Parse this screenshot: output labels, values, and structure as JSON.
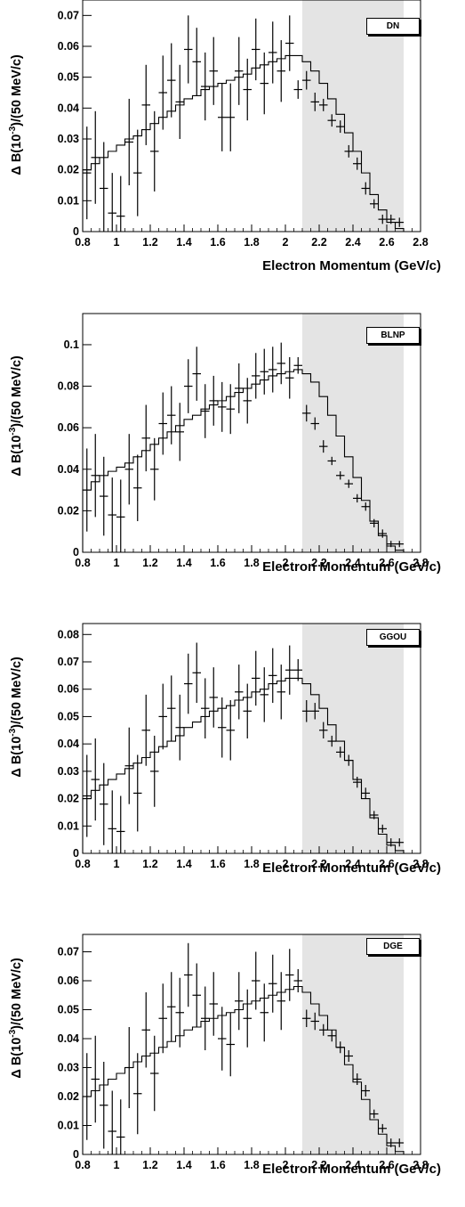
{
  "chart_data": [
    {
      "type": "histogram-with-errorbars",
      "label": "DN",
      "ylabel": "Δ B(10^-3)/(50 MeV/c)",
      "ylabel_parts": {
        "pre": "Δ B(10",
        "sup": "-3",
        "post": ")/(50 MeV/c)"
      },
      "xlabel": "Electron Momentum (GeV/c)",
      "xlim": [
        0.8,
        2.8
      ],
      "ylim": [
        0,
        0.075
      ],
      "xticks": [
        "0.8",
        "1",
        "1.2",
        "1.4",
        "1.6",
        "1.8",
        "2",
        "2.2",
        "2.4",
        "2.6",
        "2.8"
      ],
      "yticks": [
        "0",
        "0.01",
        "0.02",
        "0.03",
        "0.04",
        "0.05",
        "0.06",
        "0.07"
      ],
      "signal_region": [
        2.1,
        2.7
      ],
      "bin_edges": [
        0.8,
        0.85,
        0.9,
        0.95,
        1.0,
        1.05,
        1.1,
        1.15,
        1.2,
        1.25,
        1.3,
        1.35,
        1.4,
        1.45,
        1.5,
        1.55,
        1.6,
        1.65,
        1.7,
        1.75,
        1.8,
        1.85,
        1.9,
        1.95,
        2.0,
        2.05,
        2.1,
        2.15,
        2.2,
        2.25,
        2.3,
        2.35,
        2.4,
        2.45,
        2.5,
        2.55,
        2.6,
        2.65,
        2.7
      ],
      "model": [
        0.02,
        0.022,
        0.024,
        0.026,
        0.028,
        0.03,
        0.031,
        0.033,
        0.035,
        0.037,
        0.039,
        0.041,
        0.043,
        0.044,
        0.046,
        0.047,
        0.048,
        0.049,
        0.05,
        0.051,
        0.053,
        0.054,
        0.055,
        0.056,
        0.057,
        0.057,
        0.055,
        0.052,
        0.048,
        0.043,
        0.038,
        0.032,
        0.026,
        0.019,
        0.012,
        0.007,
        0.003,
        0.001
      ],
      "data": {
        "x": [
          0.825,
          0.875,
          0.925,
          0.975,
          1.025,
          1.075,
          1.125,
          1.175,
          1.225,
          1.275,
          1.325,
          1.375,
          1.425,
          1.475,
          1.525,
          1.575,
          1.625,
          1.675,
          1.725,
          1.775,
          1.825,
          1.875,
          1.925,
          1.975,
          2.025,
          2.075,
          2.125,
          2.175,
          2.225,
          2.275,
          2.325,
          2.375,
          2.425,
          2.475,
          2.525,
          2.575,
          2.625,
          2.675
        ],
        "y": [
          0.019,
          0.024,
          0.014,
          0.006,
          0.005,
          0.029,
          0.019,
          0.041,
          0.026,
          0.045,
          0.049,
          0.042,
          0.059,
          0.055,
          0.047,
          0.052,
          0.037,
          0.037,
          0.052,
          0.046,
          0.059,
          0.048,
          0.058,
          0.052,
          0.061,
          0.046,
          0.049,
          0.042,
          0.041,
          0.036,
          0.034,
          0.026,
          0.022,
          0.014,
          0.009,
          0.004,
          0.004,
          0.003
        ],
        "err": [
          0.015,
          0.015,
          0.015,
          0.013,
          0.013,
          0.014,
          0.014,
          0.013,
          0.013,
          0.012,
          0.012,
          0.012,
          0.011,
          0.011,
          0.011,
          0.011,
          0.011,
          0.011,
          0.011,
          0.01,
          0.01,
          0.01,
          0.01,
          0.01,
          0.009,
          0.003,
          0.003,
          0.003,
          0.002,
          0.002,
          0.002,
          0.002,
          0.002,
          0.002,
          0.0015,
          0.0015,
          0.0015,
          0.0015
        ]
      }
    },
    {
      "type": "histogram-with-errorbars",
      "label": "BLNP",
      "ylabel": "Δ B(10^-3)/(50 MeV/c)",
      "ylabel_parts": {
        "pre": "Δ B(10",
        "sup": "-3",
        "post": ")/(50 MeV/c)"
      },
      "xlabel": "Electron Momentum (GeV/c)",
      "xlim": [
        0.8,
        2.8
      ],
      "ylim": [
        0,
        0.115
      ],
      "xticks": [
        "0.8",
        "1",
        "1.2",
        "1.4",
        "1.6",
        "1.8",
        "2",
        "2.2",
        "2.4",
        "2.6",
        "2.8"
      ],
      "yticks": [
        "0",
        "0.02",
        "0.04",
        "0.06",
        "0.08",
        "0.1"
      ],
      "signal_region": [
        2.1,
        2.7
      ],
      "bin_edges": [
        0.8,
        0.85,
        0.9,
        0.95,
        1.0,
        1.05,
        1.1,
        1.15,
        1.2,
        1.25,
        1.3,
        1.35,
        1.4,
        1.45,
        1.5,
        1.55,
        1.6,
        1.65,
        1.7,
        1.75,
        1.8,
        1.85,
        1.9,
        1.95,
        2.0,
        2.05,
        2.1,
        2.15,
        2.2,
        2.25,
        2.3,
        2.35,
        2.4,
        2.45,
        2.5,
        2.55,
        2.6,
        2.65,
        2.7
      ],
      "model": [
        0.03,
        0.034,
        0.037,
        0.039,
        0.041,
        0.043,
        0.046,
        0.049,
        0.052,
        0.055,
        0.058,
        0.061,
        0.064,
        0.066,
        0.069,
        0.071,
        0.073,
        0.075,
        0.077,
        0.079,
        0.081,
        0.083,
        0.085,
        0.086,
        0.087,
        0.088,
        0.086,
        0.082,
        0.075,
        0.066,
        0.056,
        0.046,
        0.036,
        0.025,
        0.015,
        0.008,
        0.003,
        0.001
      ],
      "data": {
        "x": [
          0.825,
          0.875,
          0.925,
          0.975,
          1.025,
          1.075,
          1.125,
          1.175,
          1.225,
          1.275,
          1.325,
          1.375,
          1.425,
          1.475,
          1.525,
          1.575,
          1.625,
          1.675,
          1.725,
          1.775,
          1.825,
          1.875,
          1.925,
          1.975,
          2.025,
          2.075,
          2.125,
          2.175,
          2.225,
          2.275,
          2.325,
          2.375,
          2.425,
          2.475,
          2.525,
          2.575,
          2.625,
          2.675
        ],
        "y": [
          0.03,
          0.037,
          0.027,
          0.018,
          0.017,
          0.04,
          0.031,
          0.055,
          0.04,
          0.062,
          0.066,
          0.058,
          0.08,
          0.086,
          0.068,
          0.073,
          0.07,
          0.069,
          0.079,
          0.073,
          0.085,
          0.087,
          0.088,
          0.091,
          0.084,
          0.09,
          0.067,
          0.062,
          0.051,
          0.044,
          0.037,
          0.033,
          0.026,
          0.022,
          0.014,
          0.009,
          0.004,
          0.004
        ],
        "err": [
          0.02,
          0.02,
          0.019,
          0.018,
          0.018,
          0.017,
          0.016,
          0.016,
          0.015,
          0.015,
          0.014,
          0.014,
          0.013,
          0.013,
          0.013,
          0.012,
          0.012,
          0.012,
          0.012,
          0.011,
          0.011,
          0.011,
          0.011,
          0.01,
          0.01,
          0.004,
          0.004,
          0.003,
          0.003,
          0.002,
          0.002,
          0.002,
          0.002,
          0.002,
          0.002,
          0.002,
          0.0015,
          0.0015
        ]
      }
    },
    {
      "type": "histogram-with-errorbars",
      "label": "GGOU",
      "ylabel": "Δ B(10^-3)/(50 MeV/c)",
      "ylabel_parts": {
        "pre": "Δ B(10",
        "sup": "-3",
        "post": ")/(50 MeV/c)"
      },
      "xlabel": "Electron Momentum (GeV/c)",
      "xlim": [
        0.8,
        2.8
      ],
      "ylim": [
        0,
        0.084
      ],
      "xticks": [
        "0.8",
        "1",
        "1.2",
        "1.4",
        "1.6",
        "1.8",
        "2",
        "2.2",
        "2.4",
        "2.6",
        "2.8"
      ],
      "yticks": [
        "0",
        "0.01",
        "0.02",
        "0.03",
        "0.04",
        "0.05",
        "0.06",
        "0.07",
        "0.08"
      ],
      "signal_region": [
        2.1,
        2.7
      ],
      "bin_edges": [
        0.8,
        0.85,
        0.9,
        0.95,
        1.0,
        1.05,
        1.1,
        1.15,
        1.2,
        1.25,
        1.3,
        1.35,
        1.4,
        1.45,
        1.5,
        1.55,
        1.6,
        1.65,
        1.7,
        1.75,
        1.8,
        1.85,
        1.9,
        1.95,
        2.0,
        2.05,
        2.1,
        2.15,
        2.2,
        2.25,
        2.3,
        2.35,
        2.4,
        2.45,
        2.5,
        2.55,
        2.6,
        2.65,
        2.7
      ],
      "model": [
        0.02,
        0.023,
        0.025,
        0.027,
        0.029,
        0.031,
        0.033,
        0.035,
        0.037,
        0.039,
        0.041,
        0.043,
        0.046,
        0.048,
        0.05,
        0.052,
        0.053,
        0.054,
        0.056,
        0.057,
        0.059,
        0.06,
        0.062,
        0.063,
        0.064,
        0.064,
        0.062,
        0.058,
        0.053,
        0.047,
        0.041,
        0.034,
        0.027,
        0.02,
        0.013,
        0.007,
        0.003,
        0.001
      ],
      "data": {
        "x": [
          0.825,
          0.875,
          0.925,
          0.975,
          1.025,
          1.075,
          1.125,
          1.175,
          1.225,
          1.275,
          1.325,
          1.375,
          1.425,
          1.475,
          1.525,
          1.575,
          1.625,
          1.675,
          1.725,
          1.775,
          1.825,
          1.875,
          1.925,
          1.975,
          2.025,
          2.075,
          2.125,
          2.175,
          2.225,
          2.275,
          2.325,
          2.375,
          2.425,
          2.475,
          2.525,
          2.575,
          2.625,
          2.675
        ],
        "y": [
          0.021,
          0.027,
          0.018,
          0.009,
          0.008,
          0.032,
          0.022,
          0.045,
          0.03,
          0.05,
          0.053,
          0.046,
          0.062,
          0.066,
          0.053,
          0.057,
          0.046,
          0.045,
          0.059,
          0.052,
          0.064,
          0.058,
          0.065,
          0.059,
          0.067,
          0.067,
          0.052,
          0.052,
          0.045,
          0.041,
          0.037,
          0.034,
          0.026,
          0.022,
          0.014,
          0.009,
          0.004,
          0.004
        ],
        "err": [
          0.015,
          0.015,
          0.015,
          0.014,
          0.013,
          0.014,
          0.014,
          0.013,
          0.013,
          0.012,
          0.012,
          0.012,
          0.011,
          0.011,
          0.011,
          0.011,
          0.011,
          0.011,
          0.01,
          0.01,
          0.01,
          0.01,
          0.01,
          0.01,
          0.009,
          0.004,
          0.004,
          0.003,
          0.003,
          0.002,
          0.002,
          0.002,
          0.002,
          0.002,
          0.0015,
          0.0015,
          0.0015,
          0.0015
        ]
      }
    },
    {
      "type": "histogram-with-errorbars",
      "label": "DGE",
      "ylabel": "Δ B(10^-3)/(50 MeV/c)",
      "ylabel_parts": {
        "pre": "Δ B(10",
        "sup": "-3",
        "post": ")/(50 MeV/c)"
      },
      "xlabel": "Electron Momentum (GeV/c)",
      "xlim": [
        0.8,
        2.8
      ],
      "ylim": [
        0,
        0.076
      ],
      "xticks": [
        "0.8",
        "1",
        "1.2",
        "1.4",
        "1.6",
        "1.8",
        "2",
        "2.2",
        "2.4",
        "2.6",
        "2.8"
      ],
      "yticks": [
        "0",
        "0.01",
        "0.02",
        "0.03",
        "0.04",
        "0.05",
        "0.06",
        "0.07"
      ],
      "signal_region": [
        2.1,
        2.7
      ],
      "bin_edges": [
        0.8,
        0.85,
        0.9,
        0.95,
        1.0,
        1.05,
        1.1,
        1.15,
        1.2,
        1.25,
        1.3,
        1.35,
        1.4,
        1.45,
        1.5,
        1.55,
        1.6,
        1.65,
        1.7,
        1.75,
        1.8,
        1.85,
        1.9,
        1.95,
        2.0,
        2.05,
        2.1,
        2.15,
        2.2,
        2.25,
        2.3,
        2.35,
        2.4,
        2.45,
        2.5,
        2.55,
        2.6,
        2.65,
        2.7
      ],
      "model": [
        0.02,
        0.022,
        0.024,
        0.026,
        0.028,
        0.03,
        0.032,
        0.034,
        0.035,
        0.037,
        0.039,
        0.041,
        0.043,
        0.044,
        0.046,
        0.047,
        0.048,
        0.049,
        0.05,
        0.052,
        0.053,
        0.054,
        0.055,
        0.056,
        0.057,
        0.058,
        0.056,
        0.052,
        0.048,
        0.043,
        0.037,
        0.031,
        0.025,
        0.019,
        0.012,
        0.007,
        0.003,
        0.001
      ],
      "data": {
        "x": [
          0.825,
          0.875,
          0.925,
          0.975,
          1.025,
          1.075,
          1.125,
          1.175,
          1.225,
          1.275,
          1.325,
          1.375,
          1.425,
          1.475,
          1.525,
          1.575,
          1.625,
          1.675,
          1.725,
          1.775,
          1.825,
          1.875,
          1.925,
          1.975,
          2.025,
          2.075,
          2.125,
          2.175,
          2.225,
          2.275,
          2.325,
          2.375,
          2.425,
          2.475,
          2.525,
          2.575,
          2.625,
          2.675
        ],
        "y": [
          0.02,
          0.026,
          0.017,
          0.008,
          0.006,
          0.03,
          0.021,
          0.043,
          0.028,
          0.047,
          0.051,
          0.049,
          0.062,
          0.055,
          0.047,
          0.052,
          0.04,
          0.038,
          0.053,
          0.047,
          0.06,
          0.049,
          0.059,
          0.053,
          0.062,
          0.06,
          0.047,
          0.046,
          0.043,
          0.041,
          0.037,
          0.034,
          0.026,
          0.022,
          0.014,
          0.009,
          0.004,
          0.004
        ],
        "err": [
          0.015,
          0.015,
          0.015,
          0.014,
          0.013,
          0.014,
          0.014,
          0.013,
          0.013,
          0.012,
          0.012,
          0.012,
          0.011,
          0.011,
          0.011,
          0.011,
          0.011,
          0.011,
          0.01,
          0.01,
          0.01,
          0.01,
          0.01,
          0.01,
          0.009,
          0.004,
          0.003,
          0.003,
          0.002,
          0.002,
          0.002,
          0.002,
          0.002,
          0.002,
          0.0015,
          0.0015,
          0.0015,
          0.0015
        ]
      }
    }
  ]
}
